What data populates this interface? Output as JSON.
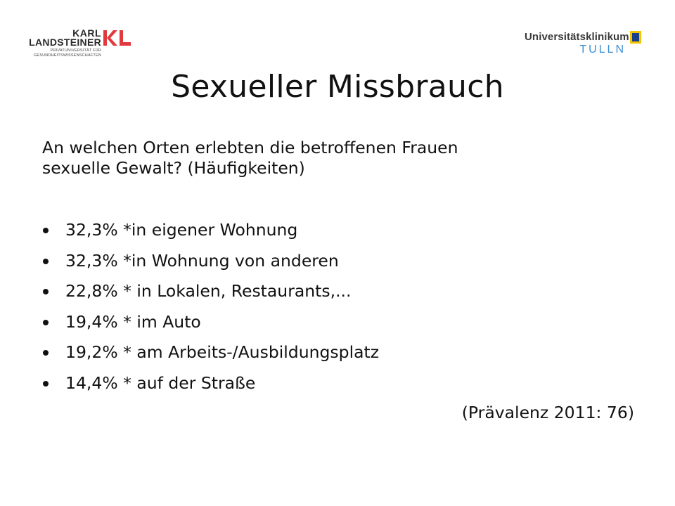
{
  "logos": {
    "left": {
      "line1": "KARL",
      "line2": "LANDSTEINER",
      "sub1": "PRIVATUNIVERSITÄT FÜR",
      "sub2": "GESUNDHEITSWISSENSCHAFTEN",
      "mark": "KL",
      "accent_color": "#e03a3e"
    },
    "right": {
      "name": "Universitätsklinikum",
      "city": "TULLN",
      "city_color": "#3e8fd0",
      "badge_colors": [
        "#f2c500",
        "#1c3f8a"
      ]
    }
  },
  "slide": {
    "title": "Sexueller Missbrauch",
    "intro_line1": "An welchen Orten erlebten die betroffenen Frauen",
    "intro_line2": "sexuelle Gewalt? (Häufigkeiten)",
    "bullets": [
      "32,3% *in eigener Wohnung",
      "32,3% *in Wohnung von anderen",
      "22,8% * in Lokalen, Restaurants,...",
      "19,4% * im Auto",
      "19,2% * am Arbeits-/Ausbildungsplatz",
      "14,4% * auf der Straße"
    ],
    "citation": "(Prävalenz 2011: 76)"
  }
}
